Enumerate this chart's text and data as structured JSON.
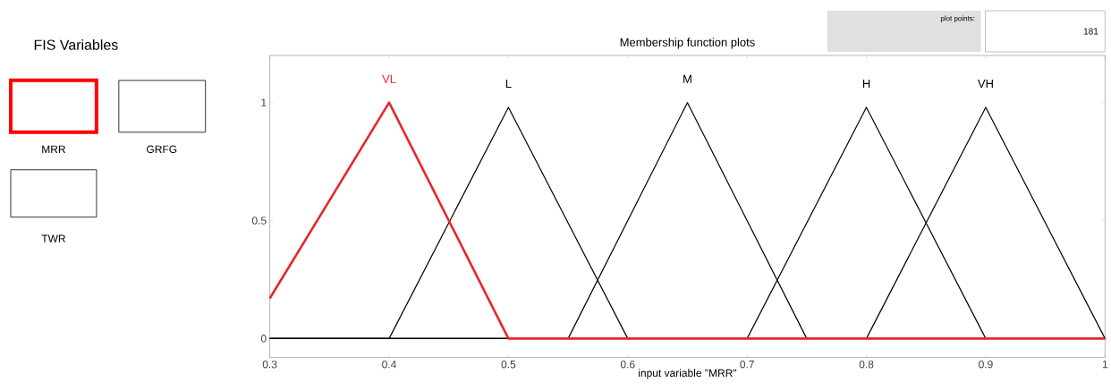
{
  "chart_data": {
    "type": "line",
    "title": "Membership function plots",
    "xlabel": "input variable \"MRR\"",
    "xlim": [
      0.3,
      1
    ],
    "ylim": [
      -0.08,
      1.2
    ],
    "xticks": [
      0.3,
      0.4,
      0.5,
      0.6,
      0.7,
      0.8,
      0.9,
      1
    ],
    "yticks": [
      0,
      0.5,
      1
    ],
    "grid": false,
    "series": [
      {
        "name": "VL",
        "color": "#e8262a",
        "x": [
          0.3,
          0.4,
          0.5,
          1
        ],
        "values": [
          0.17,
          1,
          0,
          0
        ]
      },
      {
        "name": "L",
        "color": "#000000",
        "x": [
          0.3,
          0.4,
          0.5,
          0.6,
          1
        ],
        "values": [
          0,
          0,
          0.98,
          0,
          0
        ]
      },
      {
        "name": "M",
        "color": "#000000",
        "x": [
          0.3,
          0.55,
          0.65,
          0.75,
          1
        ],
        "values": [
          0,
          0,
          1,
          0,
          0
        ]
      },
      {
        "name": "H",
        "color": "#000000",
        "x": [
          0.3,
          0.7,
          0.8,
          0.9,
          1
        ],
        "values": [
          0,
          0,
          0.98,
          0,
          0
        ]
      },
      {
        "name": "VH",
        "color": "#000000",
        "x": [
          0.3,
          0.8,
          0.9,
          1
        ],
        "values": [
          0,
          0,
          0.98,
          0
        ]
      }
    ],
    "annotations": [
      "FIS Variables",
      "MRR",
      "GRFG",
      "TWR",
      "plot points:",
      "181"
    ]
  }
}
